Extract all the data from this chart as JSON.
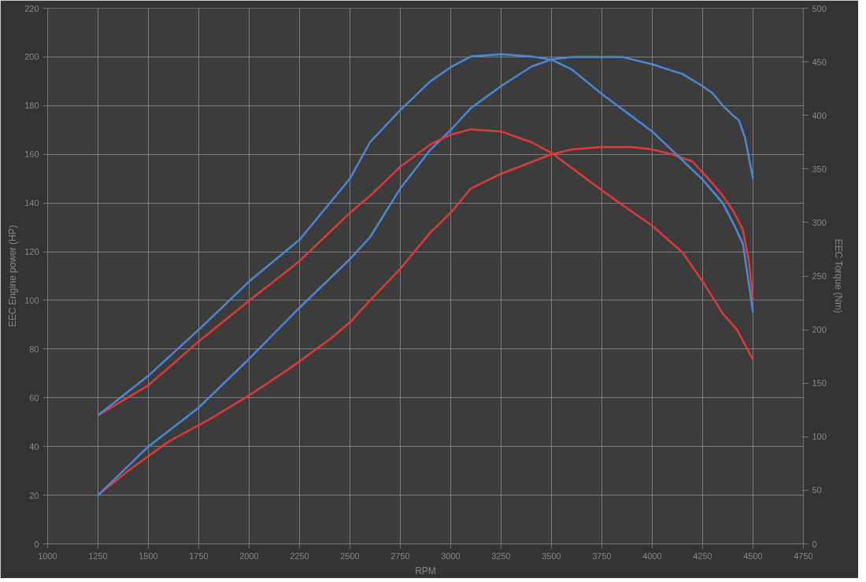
{
  "chart_data": {
    "type": "line",
    "xlabel": "RPM",
    "ylabel": "EEC Engine power (HP)",
    "y2label": "EEC Torque (Nm)",
    "xlim": [
      1000,
      4750
    ],
    "xticks": [
      1000,
      1250,
      1500,
      1750,
      2000,
      2250,
      2500,
      2750,
      3000,
      3250,
      3500,
      3750,
      4000,
      4250,
      4500,
      4750
    ],
    "ylim": [
      0,
      220
    ],
    "yticks": [
      0,
      20,
      40,
      60,
      80,
      100,
      120,
      140,
      160,
      180,
      200,
      220
    ],
    "y2lim": [
      0,
      500
    ],
    "y2ticks": [
      0,
      50,
      100,
      150,
      200,
      250,
      300,
      350,
      400,
      450,
      500
    ],
    "grid": true,
    "line_style": "solid",
    "series": [
      {
        "color": "#e03a3a",
        "x": [
          1250,
          1400,
          1500,
          1600,
          1800,
          2000,
          2200,
          2400,
          2500,
          2600,
          2750,
          2900,
          3000,
          3100,
          3250,
          3500,
          3600,
          3750,
          3900,
          4000,
          4100,
          4200,
          4300,
          4350,
          4400,
          4450,
          4480,
          4500
        ],
        "values": [
          20,
          30,
          36,
          42,
          51,
          61,
          72,
          84,
          91,
          100,
          113,
          128,
          136,
          146,
          152,
          160,
          162,
          163,
          163,
          162,
          160,
          157,
          148,
          143,
          137,
          129,
          116,
          100
        ]
      },
      {
        "color": "#4a88d8",
        "x": [
          1250,
          1500,
          1750,
          2000,
          2250,
          2500,
          2600,
          2750,
          2900,
          3000,
          3100,
          3250,
          3400,
          3500,
          3600,
          3750,
          3850,
          4000,
          4150,
          4250,
          4300,
          4350,
          4400,
          4430,
          4460,
          4500
        ],
        "values": [
          20,
          40,
          56,
          76,
          97,
          117,
          126,
          146,
          162,
          170,
          179,
          188,
          196,
          199,
          200,
          200,
          200,
          197,
          193,
          188,
          185,
          180,
          176,
          174,
          167,
          150
        ]
      },
      {
        "color": "#e03a3a",
        "axis": "y2",
        "x": [
          1250,
          1500,
          1750,
          2000,
          2250,
          2500,
          2600,
          2750,
          2900,
          3000,
          3100,
          3250,
          3400,
          3500,
          3750,
          3900,
          4000,
          4150,
          4250,
          4350,
          4420,
          4500
        ],
        "values": [
          120,
          148,
          189,
          227,
          264,
          309,
          325,
          352,
          373,
          382,
          387,
          385,
          375,
          365,
          330,
          310,
          297,
          272,
          245,
          215,
          200,
          172
        ]
      },
      {
        "color": "#4a88d8",
        "axis": "y2",
        "x": [
          1250,
          1500,
          1750,
          2000,
          2250,
          2500,
          2600,
          2750,
          2900,
          3000,
          3100,
          3250,
          3400,
          3500,
          3600,
          3750,
          4000,
          4250,
          4350,
          4400,
          4450,
          4500
        ],
        "values": [
          120,
          157,
          200,
          245,
          284,
          341,
          375,
          405,
          432,
          445,
          455,
          457,
          455,
          452,
          443,
          420,
          385,
          340,
          318,
          300,
          280,
          216
        ]
      }
    ]
  }
}
